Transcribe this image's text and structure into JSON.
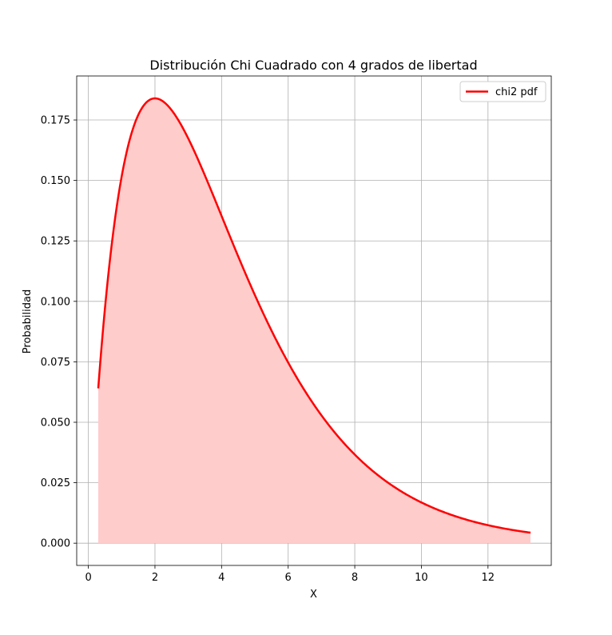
{
  "chart_data": {
    "type": "area",
    "title": "Distribución Chi Cuadrado con 4 grados de libertad",
    "xlabel": "X",
    "ylabel": "Probabilidad",
    "xlim": [
      -0.35,
      13.9
    ],
    "ylim": [
      -0.0092,
      0.1932
    ],
    "xticks": [
      0,
      2,
      4,
      6,
      8,
      10,
      12
    ],
    "xtick_labels": [
      "0",
      "2",
      "4",
      "6",
      "8",
      "10",
      "12"
    ],
    "yticks": [
      0,
      0.025,
      0.05,
      0.075,
      0.1,
      0.125,
      0.15,
      0.175
    ],
    "ytick_labels": [
      "0.000",
      "0.025",
      "0.050",
      "0.075",
      "0.100",
      "0.125",
      "0.150",
      "0.175"
    ],
    "grid": true,
    "legend_position": "upper right",
    "series": [
      {
        "name": "chi2 pdf",
        "color": "#ff0000",
        "fill_color": "#ffcccc",
        "x_range": [
          0.297,
          13.277
        ],
        "points": [
          [
            0.297,
            0.0637
          ],
          [
            0.5,
            0.0974
          ],
          [
            0.75,
            0.1288
          ],
          [
            1.0,
            0.1516
          ],
          [
            1.25,
            0.1671
          ],
          [
            1.5,
            0.1771
          ],
          [
            1.75,
            0.1824
          ],
          [
            2.0,
            0.1839
          ],
          [
            2.5,
            0.1791
          ],
          [
            3.0,
            0.1673
          ],
          [
            3.5,
            0.1516
          ],
          [
            4.0,
            0.1353
          ],
          [
            4.5,
            0.1186
          ],
          [
            5.0,
            0.1026
          ],
          [
            5.5,
            0.088
          ],
          [
            6.0,
            0.0747
          ],
          [
            6.5,
            0.063
          ],
          [
            7.0,
            0.0528
          ],
          [
            7.5,
            0.0441
          ],
          [
            8.0,
            0.0366
          ],
          [
            8.5,
            0.0303
          ],
          [
            9.0,
            0.025
          ],
          [
            9.5,
            0.0205
          ],
          [
            10.0,
            0.0168
          ],
          [
            10.5,
            0.0138
          ],
          [
            11.0,
            0.0112
          ],
          [
            11.5,
            0.0091
          ],
          [
            12.0,
            0.0074
          ],
          [
            12.5,
            0.006
          ],
          [
            13.277,
            0.0043
          ]
        ]
      }
    ]
  }
}
